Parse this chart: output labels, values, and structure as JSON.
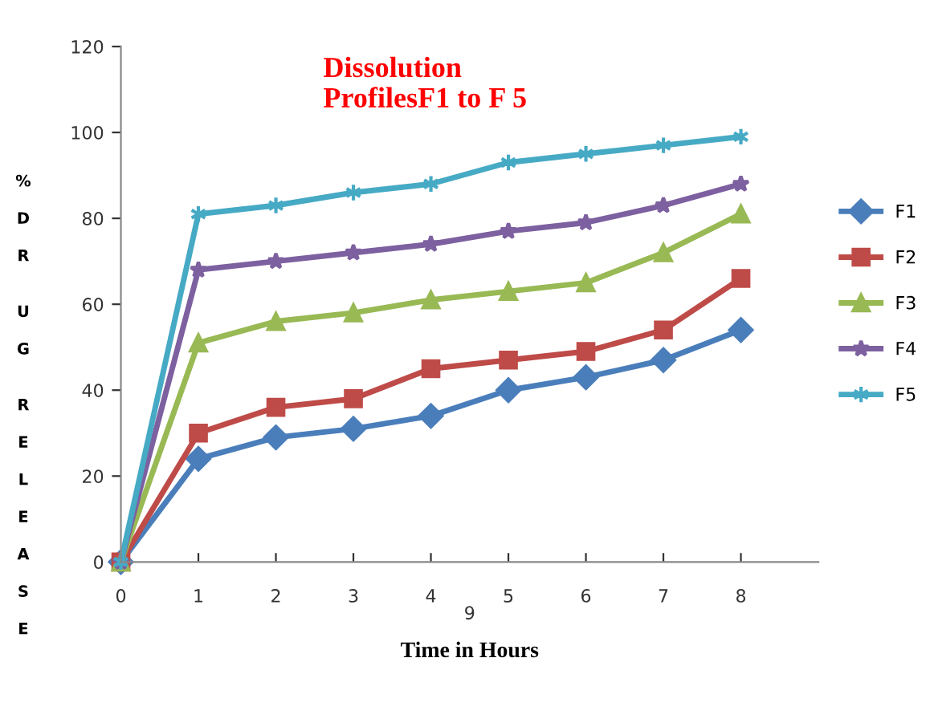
{
  "chart_data": {
    "type": "line",
    "title": "Dissolution ProfilesF1 to F 5",
    "xlabel": "Time in Hours",
    "ylabel": "% D R  U G  R E L E A S E",
    "categories": [
      "0",
      "1",
      "2",
      "3",
      "4",
      "5",
      "6",
      "7",
      "8"
    ],
    "series": [
      {
        "name": "F1",
        "color": "#4a7ebb",
        "marker": "diamond",
        "values": [
          0,
          24,
          29,
          31,
          34,
          40,
          43,
          47,
          54
        ]
      },
      {
        "name": "F2",
        "color": "#be4b48",
        "marker": "square",
        "values": [
          0,
          30,
          36,
          38,
          45,
          47,
          49,
          54,
          66
        ]
      },
      {
        "name": "F3",
        "color": "#98b954",
        "marker": "triangle",
        "values": [
          0,
          51,
          56,
          58,
          61,
          63,
          65,
          72,
          81
        ]
      },
      {
        "name": "F4",
        "color": "#7d60a0",
        "marker": "star",
        "values": [
          0,
          68,
          70,
          72,
          74,
          77,
          79,
          83,
          88
        ]
      },
      {
        "name": "F5",
        "color": "#46aac5",
        "marker": "cross",
        "values": [
          0,
          81,
          83,
          86,
          88,
          93,
          95,
          97,
          99
        ]
      }
    ],
    "ylim": [
      0,
      120
    ],
    "yticks": [
      0,
      20,
      40,
      60,
      80,
      100,
      120
    ],
    "legend": "right",
    "grid": false,
    "line_style": "solid",
    "annotations": [
      "9"
    ]
  }
}
